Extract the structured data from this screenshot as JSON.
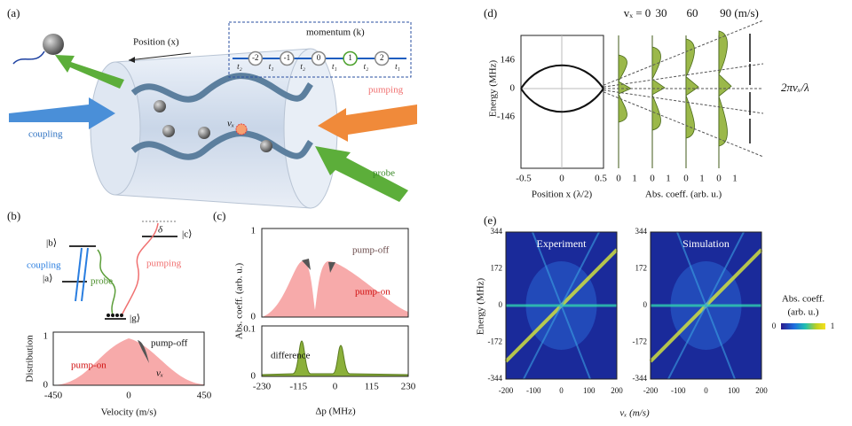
{
  "panel_a": {
    "label": "(a)",
    "position": "Position (x)",
    "momentum_title": "momentum (k)",
    "chain": [
      "t₂",
      "-2",
      "t₁",
      "-1",
      "t₂",
      "0",
      "t₁",
      "1",
      "t₂",
      "2",
      "t₁"
    ],
    "coupling": "coupling",
    "pumping": "pumping",
    "probe": "probe",
    "velocity": "vₓ"
  },
  "panel_b": {
    "label": "(b)",
    "level_b": "|b⟩",
    "level_a": "|a⟩",
    "level_c": "|c⟩",
    "level_g": "|g⟩",
    "detuning": "δ",
    "coupling": "coupling",
    "probe": "probe",
    "pumping": "pumping",
    "ylabel": "Distribution",
    "yticks": [
      "0",
      "1"
    ],
    "xticks": [
      "-450",
      "0",
      "450"
    ],
    "xlabel": "Velocity (m/s)",
    "pump_off": "pump-off",
    "pump_on": "pump-on",
    "velocity": "vₓ"
  },
  "panel_c": {
    "label": "(c)",
    "ylabel": "Abs. coeff. (arb. u.)",
    "top_yticks": [
      "0",
      "1"
    ],
    "bottom_yticks": [
      "0",
      "0.1"
    ],
    "pump_off": "pump-off",
    "pump_on": "pump-on",
    "difference": "difference",
    "xticks": [
      "-230",
      "-115",
      "0",
      "115",
      "230"
    ],
    "xlabel": "Δp  (MHz)"
  },
  "panel_d": {
    "label": "(d)",
    "ylabel": "Energy (MHz)",
    "yticks": [
      "146",
      "0",
      "-146"
    ],
    "xticks": [
      "-0.5",
      "0",
      "0.5"
    ],
    "xlabel": "Position x (λ/2)",
    "velocities": [
      "vₓ = 0",
      "30",
      "60",
      "90 (m/s)"
    ],
    "abs_ticks": [
      "0",
      "1"
    ],
    "abs_label": "Abs. coeff. (arb. u.)",
    "annotation": "2πvₓ/λ"
  },
  "panel_e": {
    "label": "(e)",
    "ylabel": "Energy (MHz)",
    "yticks": [
      "344",
      "172",
      "0",
      "-172",
      "-344"
    ],
    "xticks": [
      "-200",
      "-100",
      "0",
      "100",
      "200"
    ],
    "titles": [
      "Experiment",
      "Simulation"
    ],
    "xlabel": "vₓ (m/s)",
    "colorbar_title": [
      "Abs. coeff.",
      "(arb. u.)"
    ],
    "colorbar_ticks": [
      "0",
      "1"
    ]
  }
}
